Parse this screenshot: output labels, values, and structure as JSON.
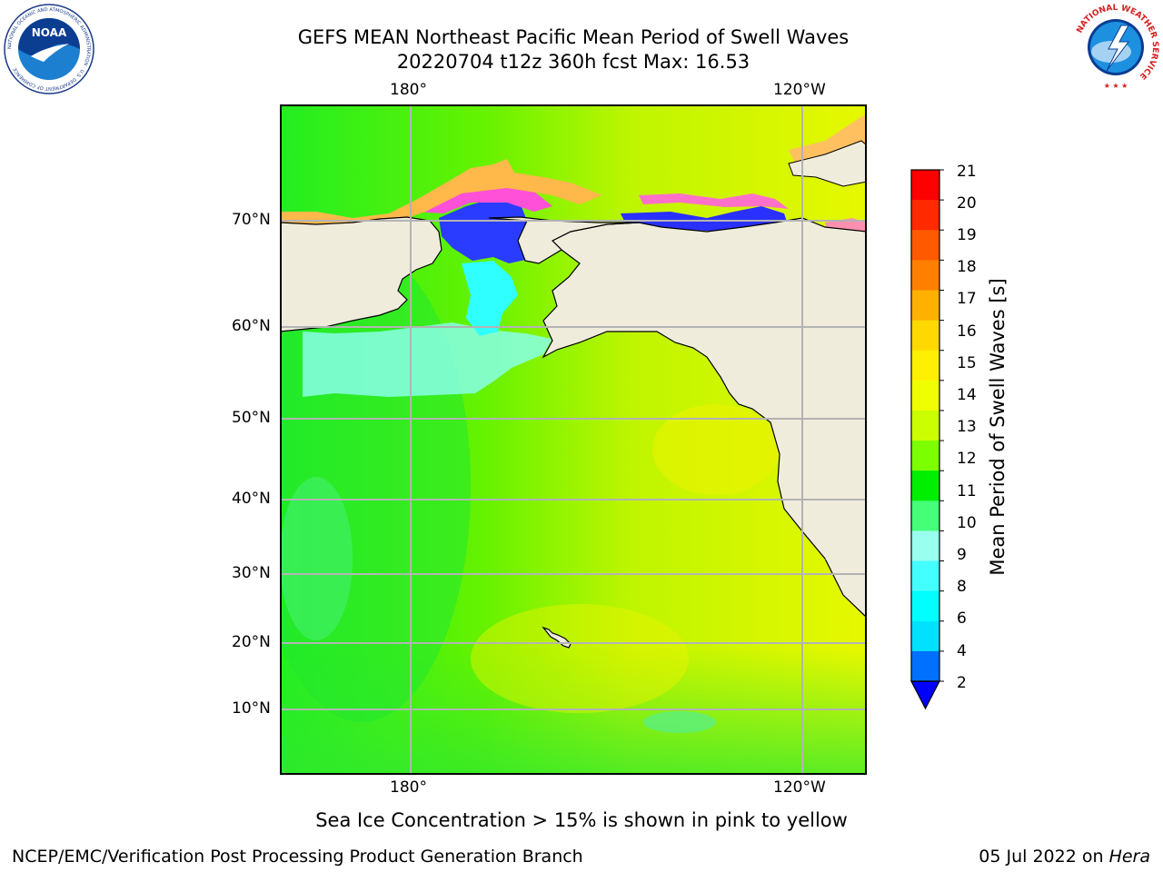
{
  "header": {
    "title_line1": "GEFS MEAN Northeast Pacific Mean Period of Swell Waves",
    "title_line2": "20220704 t12z 360h fcst   Max: 16.53"
  },
  "map": {
    "lon_labels": [
      "180°",
      "120°W"
    ],
    "lat_labels": [
      "70°N",
      "60°N",
      "50°N",
      "40°N",
      "30°N",
      "20°N",
      "10°N"
    ],
    "land_color": "#efecdc",
    "grid_color": "#b3b3b3"
  },
  "colorbar": {
    "title": "Mean Period of Swell Waves [s]",
    "tick_labels": [
      "21",
      "20",
      "19",
      "18",
      "17",
      "16",
      "15",
      "14",
      "13",
      "12",
      "11",
      "10",
      "9",
      "8",
      "6",
      "4",
      "2"
    ],
    "colors_top_to_bottom": [
      "#ff0000",
      "#ff2a00",
      "#ff5a00",
      "#ff8000",
      "#ffb000",
      "#ffd800",
      "#ffef00",
      "#f0ff00",
      "#cbff00",
      "#7cff00",
      "#00ee00",
      "#44ff77",
      "#99ffee",
      "#44ffff",
      "#00ffff",
      "#00e0ff",
      "#0070ff"
    ],
    "extend_min_color": "#0000ff"
  },
  "note": "Sea Ice Concentration > 15% is shown in pink to yellow",
  "footer": {
    "left": "NCEP/EMC/Verification Post Processing Product Generation Branch",
    "right_date": "05 Jul 2022 on",
    "right_machine": "Hera"
  },
  "logos": {
    "left": "noaa-logo",
    "right": "nws-logo",
    "noaa_text": "NOAA",
    "noaa_ring": "NATIONAL OCEANIC AND ATMOSPHERIC ADMINISTRATION · U.S. DEPARTMENT OF COMMERCE",
    "nws_ring": "NATIONAL WEATHER SERVICE"
  }
}
